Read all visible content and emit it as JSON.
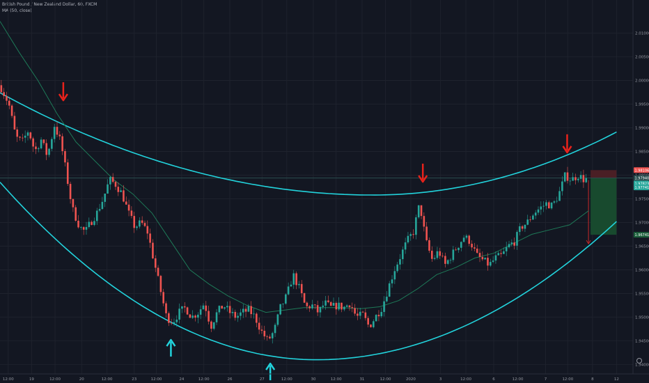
{
  "header": {
    "title": "British Pound / New Zealand Dollar, 60, FXCM",
    "indicator": "MA (50, close)"
  },
  "colors": {
    "background": "#131722",
    "bull": "#26a69a",
    "bear": "#ef5350",
    "channel": "#22d3dc",
    "ma": "#1e7a58",
    "arrow_down": "#e8221b",
    "arrow_up": "#22d3dc",
    "grid": "#1e222d",
    "axis_text": "#9598a1",
    "stop_zone": "#4a1f25",
    "target_zone": "#184a2e"
  },
  "chart_data": {
    "type": "candlestick",
    "ylim": [
      1.938,
      2.017
    ],
    "x_range": [
      0,
      100
    ],
    "y_ticks": [
      "2.01000",
      "2.00500",
      "2.00000",
      "1.99500",
      "1.99000",
      "1.98500",
      "1.98000",
      "1.97500",
      "1.97000",
      "1.96500",
      "1.96000",
      "1.95500",
      "1.95000",
      "1.94500",
      "1.94000"
    ],
    "x_ticks": [
      {
        "x": 1.3,
        "label": "12:00"
      },
      {
        "x": 5.0,
        "label": "19"
      },
      {
        "x": 8.7,
        "label": "12:00"
      },
      {
        "x": 12.9,
        "label": "20"
      },
      {
        "x": 16.9,
        "label": "12:00"
      },
      {
        "x": 21.2,
        "label": "23"
      },
      {
        "x": 24.7,
        "label": "12:00"
      },
      {
        "x": 28.7,
        "label": "24"
      },
      {
        "x": 32.2,
        "label": "12:00"
      },
      {
        "x": 36.3,
        "label": "26"
      },
      {
        "x": 41.4,
        "label": "27"
      },
      {
        "x": 45.3,
        "label": "12:00"
      },
      {
        "x": 49.5,
        "label": "30"
      },
      {
        "x": 53.1,
        "label": "12:00"
      },
      {
        "x": 57.2,
        "label": "31"
      },
      {
        "x": 60.9,
        "label": "12:00"
      },
      {
        "x": 64.9,
        "label": "2020"
      },
      {
        "x": 69.6,
        "label": "3"
      },
      {
        "x": 73.6,
        "label": "12:00"
      },
      {
        "x": 78.0,
        "label": "6"
      },
      {
        "x": 81.8,
        "label": "12:00"
      },
      {
        "x": 86.2,
        "label": "7"
      },
      {
        "x": 89.7,
        "label": "12:00"
      },
      {
        "x": 93.6,
        "label": "8"
      },
      {
        "x": 97.4,
        "label": "12"
      }
    ],
    "price_path": [
      [
        0.0,
        1.999
      ],
      [
        1.4,
        1.995
      ],
      [
        2.5,
        1.988
      ],
      [
        3.5,
        1.987
      ],
      [
        4.5,
        1.9895
      ],
      [
        5.5,
        1.985
      ],
      [
        6.5,
        1.9875
      ],
      [
        7.5,
        1.984
      ],
      [
        8.6,
        1.9905
      ],
      [
        9.6,
        1.987
      ],
      [
        10.4,
        1.981
      ],
      [
        11.4,
        1.973
      ],
      [
        12.6,
        1.969
      ],
      [
        13.5,
        1.968
      ],
      [
        14.3,
        1.97
      ],
      [
        15.3,
        1.972
      ],
      [
        16.3,
        1.975
      ],
      [
        17.3,
        1.979
      ],
      [
        18.3,
        1.978
      ],
      [
        19.3,
        1.976
      ],
      [
        20.3,
        1.972
      ],
      [
        21.3,
        1.969
      ],
      [
        22.3,
        1.97
      ],
      [
        23.3,
        1.968
      ],
      [
        24.3,
        1.962
      ],
      [
        25.3,
        1.956
      ],
      [
        26.3,
        1.95
      ],
      [
        27.3,
        1.949
      ],
      [
        28.3,
        1.951
      ],
      [
        29.3,
        1.952
      ],
      [
        30.3,
        1.95
      ],
      [
        31.3,
        1.951
      ],
      [
        32.3,
        1.953
      ],
      [
        33.3,
        1.948
      ],
      [
        34.3,
        1.951
      ],
      [
        35.3,
        1.9525
      ],
      [
        36.3,
        1.951
      ],
      [
        37.3,
        1.95
      ],
      [
        38.3,
        1.951
      ],
      [
        39.3,
        1.9515
      ],
      [
        40.3,
        1.95
      ],
      [
        41.3,
        1.947
      ],
      [
        42.3,
        1.945
      ],
      [
        43.3,
        1.947
      ],
      [
        44.3,
        1.952
      ],
      [
        45.3,
        1.9545
      ],
      [
        46.3,
        1.959
      ],
      [
        47.3,
        1.956
      ],
      [
        48.3,
        1.952
      ],
      [
        49.3,
        1.9525
      ],
      [
        50.3,
        1.951
      ],
      [
        51.3,
        1.953
      ],
      [
        52.3,
        1.952
      ],
      [
        53.3,
        1.9525
      ],
      [
        54.3,
        1.952
      ],
      [
        55.3,
        1.953
      ],
      [
        56.3,
        1.95
      ],
      [
        57.3,
        1.9505
      ],
      [
        58.3,
        1.948
      ],
      [
        59.3,
        1.95
      ],
      [
        60.3,
        1.952
      ],
      [
        61.3,
        1.956
      ],
      [
        62.3,
        1.96
      ],
      [
        63.3,
        1.963
      ],
      [
        64.3,
        1.966
      ],
      [
        65.3,
        1.968
      ],
      [
        66.3,
        1.974
      ],
      [
        67.3,
        1.966
      ],
      [
        68.3,
        1.962
      ],
      [
        69.3,
        1.964
      ],
      [
        70.3,
        1.961
      ],
      [
        71.3,
        1.963
      ],
      [
        72.3,
        1.965
      ],
      [
        73.3,
        1.967
      ],
      [
        74.3,
        1.966
      ],
      [
        75.3,
        1.963
      ],
      [
        76.3,
        1.962
      ],
      [
        77.3,
        1.961
      ],
      [
        78.3,
        1.9625
      ],
      [
        79.3,
        1.963
      ],
      [
        80.3,
        1.965
      ],
      [
        81.3,
        1.966
      ],
      [
        82.3,
        1.969
      ],
      [
        83.3,
        1.97
      ],
      [
        84.3,
        1.972
      ],
      [
        85.3,
        1.973
      ],
      [
        86.3,
        1.974
      ],
      [
        87.3,
        1.9735
      ],
      [
        88.3,
        1.976
      ],
      [
        89.3,
        1.98
      ],
      [
        90.3,
        1.979
      ],
      [
        91.3,
        1.98
      ],
      [
        92.3,
        1.979
      ],
      [
        93.0,
        1.9794
      ]
    ],
    "ma_path": [
      [
        0.0,
        2.0125
      ],
      [
        3.0,
        2.006
      ],
      [
        6.0,
        2.0
      ],
      [
        9.0,
        1.993
      ],
      [
        12.0,
        1.987
      ],
      [
        15.0,
        1.983
      ],
      [
        18.0,
        1.979
      ],
      [
        21.0,
        1.976
      ],
      [
        24.0,
        1.972
      ],
      [
        27.0,
        1.966
      ],
      [
        30.0,
        1.96
      ],
      [
        33.0,
        1.957
      ],
      [
        36.0,
        1.9545
      ],
      [
        39.0,
        1.9525
      ],
      [
        42.0,
        1.951
      ],
      [
        45.0,
        1.9515
      ],
      [
        48.0,
        1.952
      ],
      [
        51.0,
        1.952
      ],
      [
        54.0,
        1.952
      ],
      [
        57.0,
        1.9518
      ],
      [
        60.0,
        1.9522
      ],
      [
        63.0,
        1.9535
      ],
      [
        66.0,
        1.956
      ],
      [
        69.0,
        1.959
      ],
      [
        72.0,
        1.9605
      ],
      [
        75.0,
        1.9625
      ],
      [
        78.0,
        1.9635
      ],
      [
        81.0,
        1.9655
      ],
      [
        84.0,
        1.9675
      ],
      [
        87.0,
        1.9685
      ],
      [
        90.0,
        1.9695
      ],
      [
        93.0,
        1.9725
      ]
    ],
    "channel_upper": {
      "x0": 0.0,
      "y0": 1.9974,
      "x_vertex": 59.0,
      "y_vertex": 1.9758,
      "x1": 97.4,
      "y1": 1.9891
    },
    "channel_lower": {
      "x0": 0.0,
      "y0": 1.9785,
      "x_vertex": 50.0,
      "y_vertex": 1.941,
      "x1": 97.4,
      "y1": 1.9702
    },
    "arrows": [
      {
        "dir": "down",
        "x": 10.0,
        "y": 1.9958
      },
      {
        "dir": "down",
        "x": 66.8,
        "y": 1.9786
      },
      {
        "dir": "down",
        "x": 89.6,
        "y": 1.9848
      },
      {
        "dir": "up",
        "x": 27.0,
        "y": 1.9452
      },
      {
        "dir": "up",
        "x": 42.7,
        "y": 1.9402
      }
    ],
    "horizontal_line": 1.9794,
    "position": {
      "x_start": 93.3,
      "x_end": 97.4,
      "entry": 1.9794,
      "stop": 1.98106,
      "target": 1.96741
    },
    "price_labels": [
      {
        "text": "1.98106",
        "value": 1.98106,
        "color": "#ef5350"
      },
      {
        "text": "1.97940",
        "value": 1.9794,
        "color": "#2a4e4f"
      },
      {
        "text": "1.97823",
        "value": 1.97823,
        "color": "#26a69a"
      },
      {
        "text": "1.97741",
        "value": 1.97741,
        "color": "#26a69a"
      },
      {
        "text": "1.96741",
        "value": 1.96741,
        "color": "#1b5e3a"
      }
    ]
  }
}
